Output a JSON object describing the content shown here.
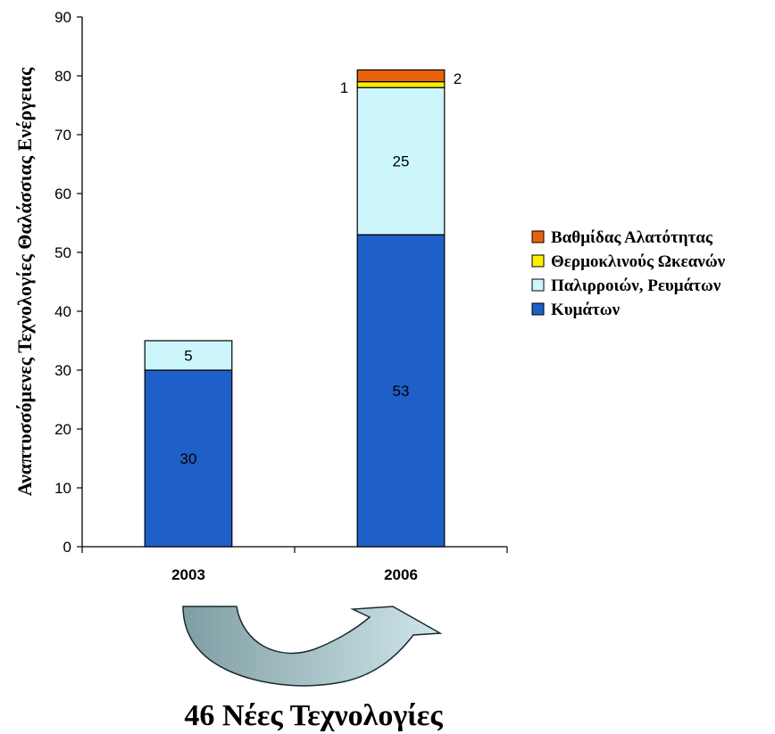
{
  "chart_data": {
    "type": "bar",
    "stacked": true,
    "title": "",
    "xlabel": "",
    "ylabel": "Αναπτυσσόμενες Τεχνολογίες Θαλάσσιας Ενέργειας",
    "categories": [
      "2003",
      "2006"
    ],
    "ylim": [
      0,
      90
    ],
    "yticks": [
      0,
      10,
      20,
      30,
      40,
      50,
      60,
      70,
      80,
      90
    ],
    "grid": false,
    "legend_position": "right",
    "series": [
      {
        "name": "Κυμάτων",
        "color": "#1f5fc8",
        "values": [
          30,
          53
        ],
        "labels": [
          "30",
          "53"
        ]
      },
      {
        "name": "Παλιρροιών, Ρευμάτων",
        "color": "#ccf6fb",
        "values": [
          5,
          25
        ],
        "labels": [
          "5",
          "25"
        ]
      },
      {
        "name": "Θερμοκλινούς Ωκεανών",
        "color": "#ffee00",
        "values": [
          0,
          1
        ],
        "labels": [
          "",
          "1"
        ]
      },
      {
        "name": "Βαθμίδας Αλατότητας",
        "color": "#e8620e",
        "values": [
          0,
          2
        ],
        "labels": [
          "",
          "2"
        ]
      }
    ],
    "legend_order": [
      "Βαθμίδας Αλατότητας",
      "Θερμοκλινούς Ωκεανών",
      "Παλιρροιών, Ρευμάτων",
      "Κυμάτων"
    ],
    "annotation": "46 Νέες Τεχνολογίες"
  }
}
